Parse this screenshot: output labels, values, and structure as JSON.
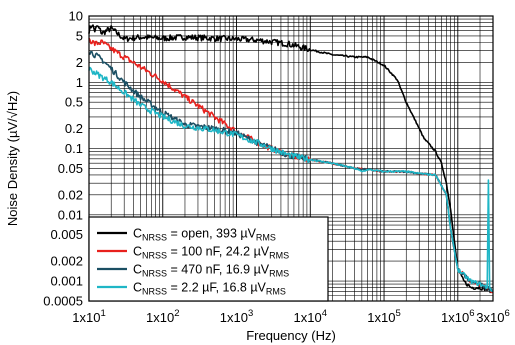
{
  "chart_data": {
    "type": "line",
    "xlabel": "Frequency (Hz)",
    "ylabel": "Noise Density (µV/√Hz)",
    "xscale": "log",
    "yscale": "log",
    "xlim": [
      10,
      3000000
    ],
    "ylim": [
      0.0005,
      10
    ],
    "grid": true,
    "legend_position": "bottom-left",
    "x_ticks": [
      {
        "value": 10,
        "mantissa": "1x10",
        "exp": "1"
      },
      {
        "value": 100,
        "mantissa": "1x10",
        "exp": "2"
      },
      {
        "value": 1000,
        "mantissa": "1x10",
        "exp": "3"
      },
      {
        "value": 10000,
        "mantissa": "1x10",
        "exp": "4"
      },
      {
        "value": 100000,
        "mantissa": "1x10",
        "exp": "5"
      },
      {
        "value": 1000000,
        "mantissa": "1x10",
        "exp": "6"
      },
      {
        "value": 3000000,
        "mantissa": "3x10",
        "exp": "6"
      }
    ],
    "y_ticks": [
      {
        "value": 10,
        "label": "10"
      },
      {
        "value": 5,
        "label": "5"
      },
      {
        "value": 2,
        "label": "2"
      },
      {
        "value": 1,
        "label": "1"
      },
      {
        "value": 0.5,
        "label": "0.5"
      },
      {
        "value": 0.2,
        "label": "0.2"
      },
      {
        "value": 0.1,
        "label": "0.1"
      },
      {
        "value": 0.05,
        "label": "0.05"
      },
      {
        "value": 0.02,
        "label": "0.02"
      },
      {
        "value": 0.01,
        "label": "0.01"
      },
      {
        "value": 0.005,
        "label": "0.005"
      },
      {
        "value": 0.002,
        "label": "0.002"
      },
      {
        "value": 0.001,
        "label": "0.001"
      },
      {
        "value": 0.0005,
        "label": "0.0005"
      }
    ],
    "series": [
      {
        "name": "C_NRSS = open, 393 µV_RMS",
        "label_main": "C",
        "label_sub": "NRSS",
        "label_mid": " = open, 393 µV",
        "label_sub2": "RMS",
        "color": "#000000",
        "x": [
          10,
          11,
          12,
          13,
          15,
          20,
          30,
          50,
          100,
          200,
          500,
          1000,
          2000,
          5000,
          10000,
          20000,
          40000,
          60000,
          100000,
          150000,
          200000,
          300000,
          350000,
          400000,
          500000,
          600000,
          700000,
          800000,
          1000000,
          1200000,
          1500000,
          2000000,
          3000000
        ],
        "y": [
          6,
          7.5,
          6,
          7,
          5.5,
          6.5,
          4.5,
          4.8,
          4.6,
          4.8,
          4.6,
          4.5,
          4.3,
          3.8,
          3.1,
          2.6,
          2.4,
          2.4,
          1.8,
          1.1,
          0.5,
          0.2,
          0.14,
          0.12,
          0.09,
          0.06,
          0.03,
          0.012,
          0.0015,
          0.001,
          0.0008,
          0.0008,
          0.0007
        ]
      },
      {
        "name": "C_NRSS = 100 nF, 24.2 µV_RMS",
        "label_main": "C",
        "label_sub": "NRSS",
        "label_mid": " = 100 nF, 24.2 µV",
        "label_sub2": "RMS",
        "color": "#e8211d",
        "x": [
          10,
          12,
          15,
          20,
          30,
          50,
          100,
          200,
          500,
          1000,
          2000,
          5000,
          10000,
          20000,
          40000,
          60000,
          100000,
          200000,
          300000,
          500000,
          700000,
          800000,
          1000000,
          1500000,
          2000000,
          3000000
        ],
        "y": [
          4.5,
          3.8,
          4.0,
          3.2,
          2.4,
          1.7,
          1.05,
          0.6,
          0.3,
          0.18,
          0.12,
          0.08,
          0.068,
          0.06,
          0.05,
          0.048,
          0.045,
          0.045,
          0.042,
          0.04,
          0.02,
          0.006,
          0.0015,
          0.001,
          0.0009,
          0.0007
        ]
      },
      {
        "name": "C_NRSS = 470 nF, 16.9 µV_RMS",
        "label_main": "C",
        "label_sub": "NRSS",
        "label_mid": " = 470 nF, 16.9 µV",
        "label_sub2": "RMS",
        "color": "#1b4f63",
        "x": [
          10,
          12,
          15,
          20,
          30,
          50,
          100,
          200,
          500,
          1000,
          2000,
          5000,
          10000,
          20000,
          40000,
          60000,
          100000,
          200000,
          300000,
          500000,
          700000,
          800000,
          1000000,
          1500000,
          2000000,
          3000000
        ],
        "y": [
          3.0,
          2.6,
          2.2,
          1.6,
          1.0,
          0.6,
          0.35,
          0.23,
          0.2,
          0.17,
          0.12,
          0.08,
          0.068,
          0.06,
          0.05,
          0.048,
          0.045,
          0.045,
          0.042,
          0.04,
          0.02,
          0.006,
          0.0015,
          0.001,
          0.0009,
          0.0007
        ]
      },
      {
        "name": "C_NRSS = 2.2 µF, 16.8 µV_RMS",
        "label_main": "C",
        "label_sub": "NRSS",
        "label_mid": " = 2.2 µF, 16.8 µV",
        "label_sub2": "RMS",
        "color": "#1fb6c6",
        "x": [
          10,
          12,
          15,
          20,
          30,
          50,
          100,
          200,
          500,
          1000,
          2000,
          5000,
          10000,
          20000,
          40000,
          50000,
          60000,
          100000,
          200000,
          300000,
          500000,
          700000,
          800000,
          1000000,
          1500000,
          2000000,
          2500000,
          2600000,
          2700000,
          3000000
        ],
        "y": [
          1.6,
          1.4,
          1.2,
          1.0,
          0.7,
          0.45,
          0.3,
          0.22,
          0.19,
          0.16,
          0.12,
          0.08,
          0.068,
          0.06,
          0.05,
          0.045,
          0.048,
          0.045,
          0.045,
          0.042,
          0.04,
          0.02,
          0.006,
          0.0015,
          0.001,
          0.0009,
          0.0008,
          0.035,
          0.0008,
          0.0007
        ]
      }
    ]
  }
}
